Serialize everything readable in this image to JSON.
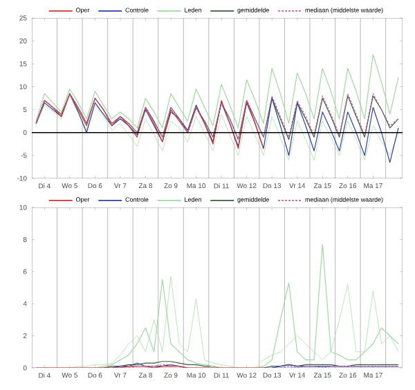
{
  "chart_data": [
    {
      "type": "line",
      "ylim": [
        -10,
        25
      ],
      "yticks": [
        -10,
        -5,
        0,
        5,
        10,
        15,
        20,
        25
      ],
      "categories": [
        null,
        "Di 4",
        null,
        null,
        "Wo 5",
        null,
        null,
        "Do 6",
        null,
        null,
        "Vr 7",
        null,
        null,
        "Za 8",
        null,
        null,
        "Zo 9",
        null,
        null,
        "Ma 10",
        null,
        null,
        "Di 11",
        null,
        null,
        "Wo 12",
        null,
        null,
        "Do 13",
        null,
        null,
        "Vr 14",
        null,
        null,
        "Za 15",
        null,
        null,
        "Zo 16",
        null,
        null,
        "Ma 17",
        null,
        null,
        null
      ],
      "grid": "x",
      "legend": "top",
      "marker": "none",
      "ref_lines": [
        {
          "axis": "y",
          "value": 0,
          "color": "#000000"
        }
      ],
      "series": [
        {
          "name": "Oper",
          "color": "#d03030",
          "values": [
            2,
            7,
            5.5,
            3.5,
            8.5,
            5,
            1.5,
            7.5,
            5,
            1.5,
            3.5,
            1.5,
            -1,
            5.5,
            2,
            -2,
            5,
            2.5,
            0,
            5.5,
            2,
            -2.5,
            7,
            2,
            -3.5,
            7,
            2,
            -3.5,
            null,
            null,
            null,
            null,
            null,
            null,
            null,
            null,
            null,
            null,
            null,
            null,
            null,
            null,
            null,
            null
          ]
        },
        {
          "name": "Controle",
          "color": "#2a3f9f",
          "values": [
            2,
            6.5,
            5,
            3.5,
            8.5,
            4.5,
            0,
            6.5,
            4,
            1.5,
            3,
            1.5,
            -0.5,
            5,
            1.5,
            -2,
            4.5,
            3,
            0.5,
            6,
            2,
            -2,
            6.5,
            2,
            -3,
            6.5,
            2,
            -3.5,
            7.5,
            1.5,
            -5,
            6.5,
            1.5,
            -4,
            4.5,
            0.5,
            -4,
            4.5,
            0,
            -5,
            5.5,
            0,
            -6.5,
            1
          ]
        },
        {
          "name": "Leden",
          "color": "#9ed99e",
          "values": [
            2.5,
            8.5,
            6.5,
            4.5,
            9.5,
            6.5,
            3,
            9,
            6,
            3,
            4.5,
            3,
            1,
            7.5,
            4.5,
            1,
            8.5,
            5.5,
            2.5,
            9.5,
            5.5,
            1.5,
            10.5,
            6,
            1,
            11.5,
            7,
            2,
            14,
            8.5,
            2,
            13,
            8.5,
            3,
            14,
            9,
            3,
            14,
            9,
            3,
            17,
            11,
            4,
            12
          ]
        },
        {
          "name": "gemiddelde",
          "color": "#3d5a3d",
          "values": [
            2,
            7,
            5.5,
            4,
            8.5,
            5.5,
            2,
            7.5,
            5,
            2,
            3.5,
            2,
            0,
            5.5,
            2.5,
            -1,
            5.5,
            3,
            0,
            5.5,
            2.5,
            -1,
            6.5,
            3,
            -1.5,
            7,
            3,
            -1,
            7.5,
            3,
            -1.5,
            6.5,
            3,
            -1,
            7.5,
            3.5,
            -1,
            8,
            3.5,
            -1,
            8,
            5,
            1,
            3
          ]
        },
        {
          "name": "mediaan (middelste waarde)",
          "color": "#c060a0",
          "line_style": "dashed",
          "values": [
            2,
            7,
            5.5,
            4,
            8.5,
            5.5,
            2,
            7.5,
            5,
            2,
            3.5,
            2,
            0,
            5.5,
            2.5,
            -1,
            5.5,
            3,
            0,
            5.5,
            2.5,
            -1,
            6.5,
            3,
            -1.5,
            7,
            3,
            -1,
            8,
            3.5,
            -1,
            7,
            3.5,
            -0.5,
            8,
            4,
            -0.5,
            8.5,
            4,
            -0.5,
            8.5,
            5,
            1.5,
            3
          ]
        },
        {
          "color": "#9ed99e",
          "values": [
            1.5,
            6,
            4.5,
            3,
            8,
            4.5,
            0.5,
            6,
            3.5,
            0.5,
            2,
            -0.5,
            -3,
            3,
            -0.5,
            -4,
            2.5,
            1,
            -2,
            3.5,
            0,
            -4,
            4,
            -0.5,
            -5,
            3.5,
            -0.5,
            -5,
            3.5,
            -1,
            -6,
            2.5,
            -1.5,
            -6,
            2.5,
            -1,
            -5,
            2.5,
            -1.5,
            -6,
            1.5,
            -2,
            -5,
            0
          ]
        }
      ]
    },
    {
      "type": "line",
      "ylim": [
        0,
        10
      ],
      "yticks": [
        0,
        2,
        4,
        6,
        8,
        10
      ],
      "categories": [
        null,
        "Di 4",
        null,
        null,
        "Wo 5",
        null,
        null,
        "Do 6",
        null,
        null,
        "Vr 7",
        null,
        null,
        "Za 8",
        null,
        null,
        "Zo 9",
        null,
        null,
        "Ma 10",
        null,
        null,
        "Di 11",
        null,
        null,
        "Wo 12",
        null,
        null,
        "Do 13",
        null,
        null,
        "Vr 14",
        null,
        null,
        "Za 15",
        null,
        null,
        "Zo 16",
        null,
        null,
        "Ma 17",
        null,
        null,
        null
      ],
      "grid": "x",
      "legend": "top",
      "marker": "none",
      "series": [
        {
          "name": "Oper",
          "color": "#d03030",
          "values": [
            0,
            0,
            0,
            0,
            0,
            0,
            0,
            0,
            0,
            0,
            0,
            0.1,
            0.1,
            0.1,
            0,
            0.1,
            0.1,
            0.1,
            0,
            0,
            0,
            0,
            0,
            0,
            0,
            0,
            0,
            0,
            null,
            null,
            null,
            null,
            null,
            null,
            null,
            null,
            null,
            null,
            null,
            null,
            null,
            null,
            null,
            null
          ]
        },
        {
          "name": "Controle",
          "color": "#2a3f9f",
          "values": [
            null,
            null,
            null,
            null,
            null,
            null,
            null,
            null,
            null,
            0,
            0.1,
            0.1,
            0.3,
            0.1,
            0.1,
            0.1,
            0.2,
            0.1,
            0,
            null,
            null,
            null,
            null,
            null,
            null,
            null,
            null,
            null,
            0,
            0.1,
            0.2,
            0.1,
            0.1,
            0.1,
            0.1,
            0.1,
            0.1,
            0.1,
            0.1,
            0.1,
            0.1,
            0.1,
            0.1,
            0.1
          ]
        },
        {
          "name": "Leden",
          "color": "#9ed99e",
          "values": [
            null,
            null,
            null,
            null,
            null,
            null,
            null,
            0,
            0.1,
            0.2,
            0.5,
            0.8,
            1.5,
            2.5,
            1,
            5.5,
            1.5,
            1,
            0.5,
            0.3,
            0.2,
            0.1,
            0,
            null,
            null,
            null,
            0,
            0.1,
            0.5,
            3,
            5.3,
            1,
            0.5,
            0.5,
            7.7,
            1,
            0.8,
            0.5,
            0.5,
            1,
            1.5,
            2.5,
            2,
            1.5
          ]
        },
        {
          "name": "gemiddelde",
          "color": "#3d5a3d",
          "values": [
            null,
            null,
            null,
            null,
            null,
            null,
            null,
            null,
            0,
            0.1,
            0.1,
            0.2,
            0.2,
            0.3,
            0.3,
            0.4,
            0.4,
            0.3,
            0.2,
            0.2,
            0.1,
            0.1,
            0,
            null,
            null,
            null,
            null,
            0,
            0.1,
            0.1,
            0.2,
            0.1,
            0.2,
            0.2,
            0.2,
            0.2,
            0.1,
            0.1,
            0.2,
            0.2,
            0.2,
            0.2,
            0.2,
            0.2
          ]
        },
        {
          "name": "mediaan (middelste waarde)",
          "color": "#c060a0",
          "line_style": "dashed",
          "values": [
            null,
            null,
            null,
            null,
            null,
            null,
            null,
            null,
            null,
            null,
            null,
            0,
            0.1,
            0.1,
            0.1,
            0.2,
            0.2,
            0.1,
            0,
            null,
            null,
            null,
            null,
            null,
            null,
            null,
            null,
            null,
            null,
            0,
            0.1,
            0,
            0.1,
            0.1,
            0,
            0.1,
            0.1,
            0.1,
            0.1,
            0.1,
            0.1,
            0.1,
            0.1,
            0.1
          ]
        },
        {
          "color": "#9ed99e",
          "values": [
            null,
            null,
            null,
            null,
            0,
            0.1,
            0.1,
            0.2,
            0.2,
            0.3,
            0.8,
            1.5,
            2,
            1,
            3,
            1,
            5.7,
            1.5,
            1,
            4.3,
            0.5,
            0.3,
            0.2,
            0.1,
            0,
            null,
            0,
            0.5,
            0.8,
            1,
            1.5,
            2,
            1.5,
            1,
            0.5,
            1,
            3,
            5.2,
            1,
            1,
            4.8,
            1.5,
            2,
            1
          ]
        }
      ]
    }
  ]
}
